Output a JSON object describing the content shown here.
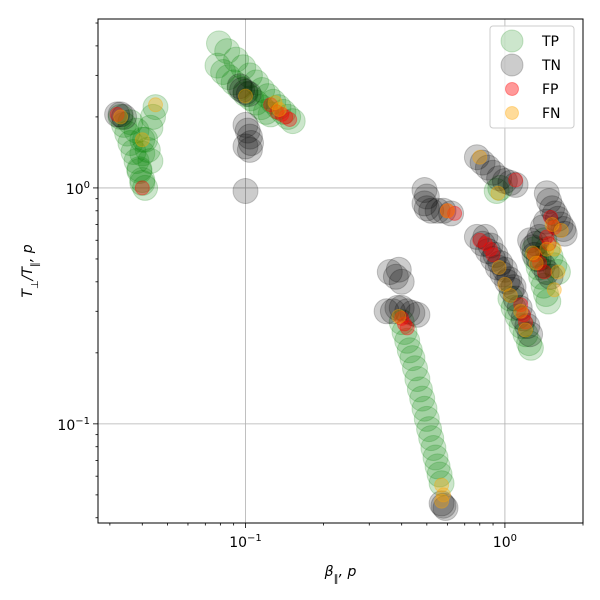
{
  "chart_data": {
    "type": "scatter",
    "xscale": "log",
    "yscale": "log",
    "xlim": [
      0.027,
      2.0
    ],
    "ylim": [
      0.038,
      5.2
    ],
    "xlabel": "β_∥, p",
    "ylabel": "T_⊥/T_∥, p",
    "grid": true,
    "legend_position": "top-right",
    "x_ticks": [
      {
        "value": 0.1,
        "label": "10^-1"
      },
      {
        "value": 1.0,
        "label": "10^0"
      }
    ],
    "y_ticks": [
      {
        "value": 0.1,
        "label": "10^-1"
      },
      {
        "value": 1.0,
        "label": "10^0"
      }
    ],
    "series": [
      {
        "name": "TP",
        "color": "#008000",
        "marker_size": "large",
        "alpha": 0.2,
        "points": [
          [
            0.033,
            2.0
          ],
          [
            0.034,
            1.85
          ],
          [
            0.035,
            1.7
          ],
          [
            0.036,
            1.55
          ],
          [
            0.037,
            1.42
          ],
          [
            0.038,
            1.3
          ],
          [
            0.039,
            1.18
          ],
          [
            0.04,
            1.08
          ],
          [
            0.041,
            1.0
          ],
          [
            0.036,
            1.9
          ],
          [
            0.038,
            1.75
          ],
          [
            0.04,
            1.6
          ],
          [
            0.042,
            1.45
          ],
          [
            0.043,
            1.3
          ],
          [
            0.045,
            2.2
          ],
          [
            0.044,
            2.0
          ],
          [
            0.043,
            1.8
          ],
          [
            0.041,
            1.6
          ],
          [
            0.04,
            1.4
          ],
          [
            0.039,
            1.2
          ],
          [
            0.04,
            1.05
          ],
          [
            0.078,
            3.3
          ],
          [
            0.082,
            3.1
          ],
          [
            0.086,
            2.95
          ],
          [
            0.09,
            2.8
          ],
          [
            0.095,
            2.65
          ],
          [
            0.1,
            2.5
          ],
          [
            0.105,
            2.4
          ],
          [
            0.11,
            2.3
          ],
          [
            0.115,
            2.2
          ],
          [
            0.12,
            2.1
          ],
          [
            0.125,
            2.05
          ],
          [
            0.079,
            4.1
          ],
          [
            0.085,
            3.8
          ],
          [
            0.092,
            3.5
          ],
          [
            0.098,
            3.25
          ],
          [
            0.104,
            3.0
          ],
          [
            0.11,
            2.8
          ],
          [
            0.116,
            2.6
          ],
          [
            0.122,
            2.45
          ],
          [
            0.128,
            2.32
          ],
          [
            0.134,
            2.2
          ],
          [
            0.14,
            2.1
          ],
          [
            0.146,
            2.0
          ],
          [
            0.152,
            1.92
          ],
          [
            0.4,
            0.27
          ],
          [
            0.41,
            0.245
          ],
          [
            0.42,
            0.225
          ],
          [
            0.43,
            0.205
          ],
          [
            0.44,
            0.19
          ],
          [
            0.45,
            0.172
          ],
          [
            0.46,
            0.155
          ],
          [
            0.47,
            0.14
          ],
          [
            0.48,
            0.128
          ],
          [
            0.49,
            0.116
          ],
          [
            0.5,
            0.105
          ],
          [
            0.51,
            0.095
          ],
          [
            0.52,
            0.087
          ],
          [
            0.53,
            0.079
          ],
          [
            0.54,
            0.072
          ],
          [
            0.55,
            0.066
          ],
          [
            0.56,
            0.061
          ],
          [
            0.57,
            0.056
          ],
          [
            0.93,
            0.97
          ],
          [
            0.96,
            1.0
          ],
          [
            1.05,
            0.34
          ],
          [
            1.08,
            0.31
          ],
          [
            1.12,
            0.285
          ],
          [
            1.16,
            0.26
          ],
          [
            1.2,
            0.24
          ],
          [
            1.24,
            0.22
          ],
          [
            1.26,
            0.21
          ],
          [
            1.3,
            0.55
          ],
          [
            1.32,
            0.5
          ],
          [
            1.35,
            0.46
          ],
          [
            1.38,
            0.42
          ],
          [
            1.41,
            0.385
          ],
          [
            1.44,
            0.355
          ],
          [
            1.47,
            0.33
          ],
          [
            1.42,
            0.6
          ],
          [
            1.46,
            0.55
          ],
          [
            1.5,
            0.51
          ],
          [
            1.55,
            0.47
          ],
          [
            1.6,
            0.44
          ]
        ]
      },
      {
        "name": "TN",
        "color": "#000000",
        "marker_size": "large",
        "alpha": 0.2,
        "points": [
          [
            0.032,
            2.05
          ],
          [
            0.033,
            2.05
          ],
          [
            0.034,
            2.0
          ],
          [
            0.097,
            2.6
          ],
          [
            0.1,
            2.55
          ],
          [
            0.103,
            2.5
          ],
          [
            0.095,
            2.7
          ],
          [
            0.1,
            1.85
          ],
          [
            0.102,
            1.75
          ],
          [
            0.104,
            1.65
          ],
          [
            0.105,
            1.55
          ],
          [
            0.1,
            1.5
          ],
          [
            0.104,
            1.45
          ],
          [
            0.1,
            0.97
          ],
          [
            0.36,
            0.44
          ],
          [
            0.38,
            0.42
          ],
          [
            0.4,
            0.4
          ],
          [
            0.37,
            0.3
          ],
          [
            0.385,
            0.31
          ],
          [
            0.4,
            0.31
          ],
          [
            0.42,
            0.3
          ],
          [
            0.44,
            0.295
          ],
          [
            0.46,
            0.29
          ],
          [
            0.35,
            0.3
          ],
          [
            0.39,
            0.45
          ],
          [
            0.49,
            0.98
          ],
          [
            0.5,
            0.92
          ],
          [
            0.49,
            0.86
          ],
          [
            0.5,
            0.82
          ],
          [
            0.52,
            0.8
          ],
          [
            0.55,
            0.8
          ],
          [
            0.58,
            0.8
          ],
          [
            0.62,
            0.78
          ],
          [
            0.58,
            0.045
          ],
          [
            0.59,
            0.044
          ],
          [
            0.57,
            0.046
          ],
          [
            0.78,
            1.35
          ],
          [
            0.82,
            1.28
          ],
          [
            0.86,
            1.22
          ],
          [
            0.9,
            1.16
          ],
          [
            0.95,
            1.1
          ],
          [
            1.0,
            1.07
          ],
          [
            1.05,
            1.05
          ],
          [
            1.1,
            1.03
          ],
          [
            0.78,
            0.62
          ],
          [
            0.82,
            0.58
          ],
          [
            0.86,
            0.54
          ],
          [
            0.9,
            0.5
          ],
          [
            0.94,
            0.46
          ],
          [
            0.98,
            0.43
          ],
          [
            1.02,
            0.4
          ],
          [
            1.06,
            0.37
          ],
          [
            1.1,
            0.34
          ],
          [
            1.14,
            0.31
          ],
          [
            1.18,
            0.28
          ],
          [
            1.22,
            0.26
          ],
          [
            1.25,
            0.24
          ],
          [
            0.84,
            0.62
          ],
          [
            0.88,
            0.57
          ],
          [
            0.92,
            0.52
          ],
          [
            0.96,
            0.48
          ],
          [
            1.0,
            0.45
          ],
          [
            1.04,
            0.41
          ],
          [
            1.08,
            0.38
          ],
          [
            1.25,
            0.6
          ],
          [
            1.28,
            0.56
          ],
          [
            1.3,
            0.52
          ],
          [
            1.35,
            0.5
          ],
          [
            1.4,
            0.47
          ],
          [
            1.45,
            0.44
          ],
          [
            1.5,
            0.42
          ],
          [
            1.45,
            0.95
          ],
          [
            1.48,
            0.88
          ],
          [
            1.52,
            0.82
          ],
          [
            1.56,
            0.78
          ],
          [
            1.6,
            0.74
          ],
          [
            1.64,
            0.7
          ],
          [
            1.68,
            0.67
          ],
          [
            1.7,
            0.64
          ],
          [
            1.44,
            0.72
          ],
          [
            1.4,
            0.68
          ],
          [
            1.36,
            0.62
          ],
          [
            1.32,
            0.58
          ]
        ]
      },
      {
        "name": "FP",
        "color": "#ff0000",
        "marker_size": "small",
        "alpha": 0.35,
        "points": [
          [
            0.032,
            2.05
          ],
          [
            0.04,
            1.0
          ],
          [
            0.132,
            2.1
          ],
          [
            0.138,
            2.05
          ],
          [
            0.143,
            2.0
          ],
          [
            0.148,
            1.95
          ],
          [
            0.125,
            2.25
          ],
          [
            0.41,
            0.265
          ],
          [
            0.42,
            0.255
          ],
          [
            0.4,
            0.28
          ],
          [
            0.64,
            0.78
          ],
          [
            0.6,
            0.8
          ],
          [
            0.8,
            0.6
          ],
          [
            0.84,
            0.58
          ],
          [
            0.88,
            0.55
          ],
          [
            0.9,
            0.52
          ],
          [
            1.2,
            0.27
          ],
          [
            1.18,
            0.29
          ],
          [
            1.15,
            0.32
          ],
          [
            1.1,
            1.08
          ],
          [
            1.3,
            0.52
          ],
          [
            1.36,
            0.48
          ],
          [
            1.42,
            0.44
          ],
          [
            1.45,
            0.62
          ],
          [
            1.5,
            0.75
          ],
          [
            1.55,
            0.68
          ],
          [
            1.48,
            0.58
          ]
        ]
      },
      {
        "name": "FN",
        "color": "#ffa500",
        "marker_size": "small",
        "alpha": 0.35,
        "points": [
          [
            0.045,
            2.25
          ],
          [
            0.033,
            2.0
          ],
          [
            0.04,
            1.6
          ],
          [
            0.1,
            2.45
          ],
          [
            0.13,
            2.3
          ],
          [
            0.135,
            2.15
          ],
          [
            0.39,
            0.285
          ],
          [
            0.57,
            0.055
          ],
          [
            0.58,
            0.05
          ],
          [
            0.57,
            0.047
          ],
          [
            0.6,
            0.8
          ],
          [
            0.8,
            1.35
          ],
          [
            0.94,
            0.95
          ],
          [
            0.95,
            0.46
          ],
          [
            1.0,
            0.39
          ],
          [
            1.05,
            0.35
          ],
          [
            1.15,
            0.3
          ],
          [
            1.2,
            0.25
          ],
          [
            1.28,
            0.53
          ],
          [
            1.32,
            0.48
          ],
          [
            1.45,
            0.55
          ],
          [
            1.52,
            0.7
          ],
          [
            1.55,
            0.55
          ],
          [
            1.65,
            0.66
          ],
          [
            1.6,
            0.44
          ],
          [
            1.55,
            0.37
          ]
        ]
      }
    ]
  }
}
